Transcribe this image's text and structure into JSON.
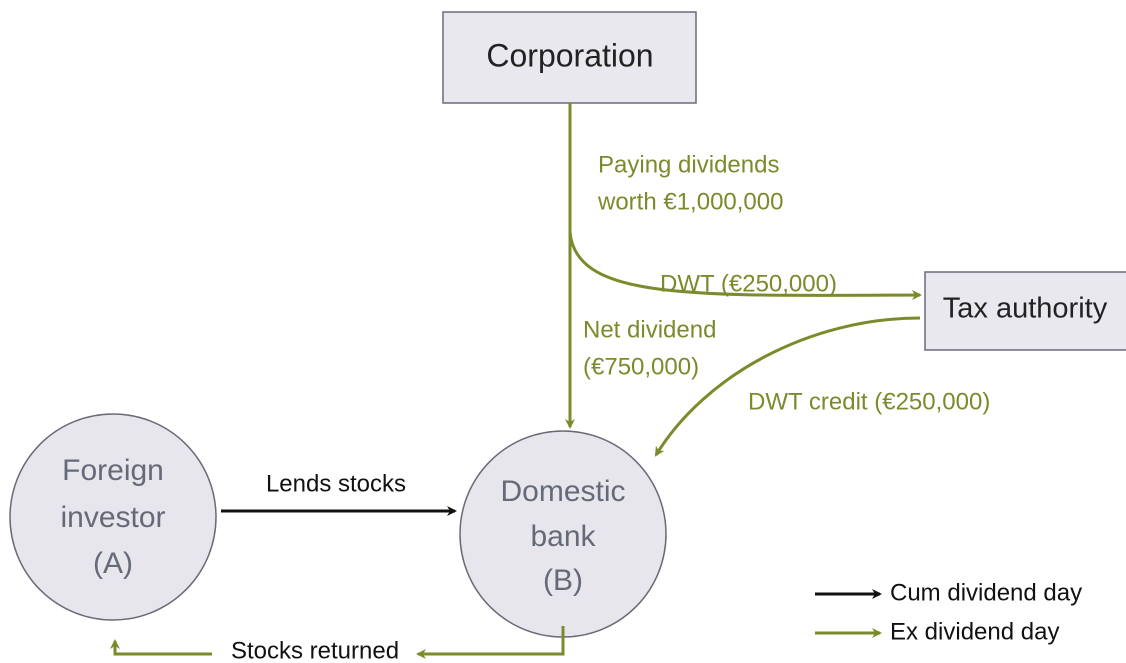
{
  "nodes": [
    {
      "label": "Corporation"
    },
    {
      "label": "Tax authority"
    },
    {
      "lines": [
        "Foreign",
        "investor",
        "(A)"
      ]
    },
    {
      "lines": [
        "Domestic",
        "bank",
        "(B)"
      ]
    }
  ],
  "edges": [
    {
      "lines": [
        "Paying dividends",
        "worth  €1,000,000"
      ]
    },
    {
      "lines": [
        "DWT (€250,000)"
      ]
    },
    {
      "lines": [
        "Net dividend",
        "(€750,000)"
      ]
    },
    {
      "lines": [
        "DWT credit (€250,000)"
      ]
    },
    {
      "lines": [
        "Lends stocks"
      ]
    },
    {
      "lines": [
        "Stocks returned"
      ]
    }
  ],
  "legend": [
    "Cum dividend day",
    "Ex dividend day"
  ]
}
